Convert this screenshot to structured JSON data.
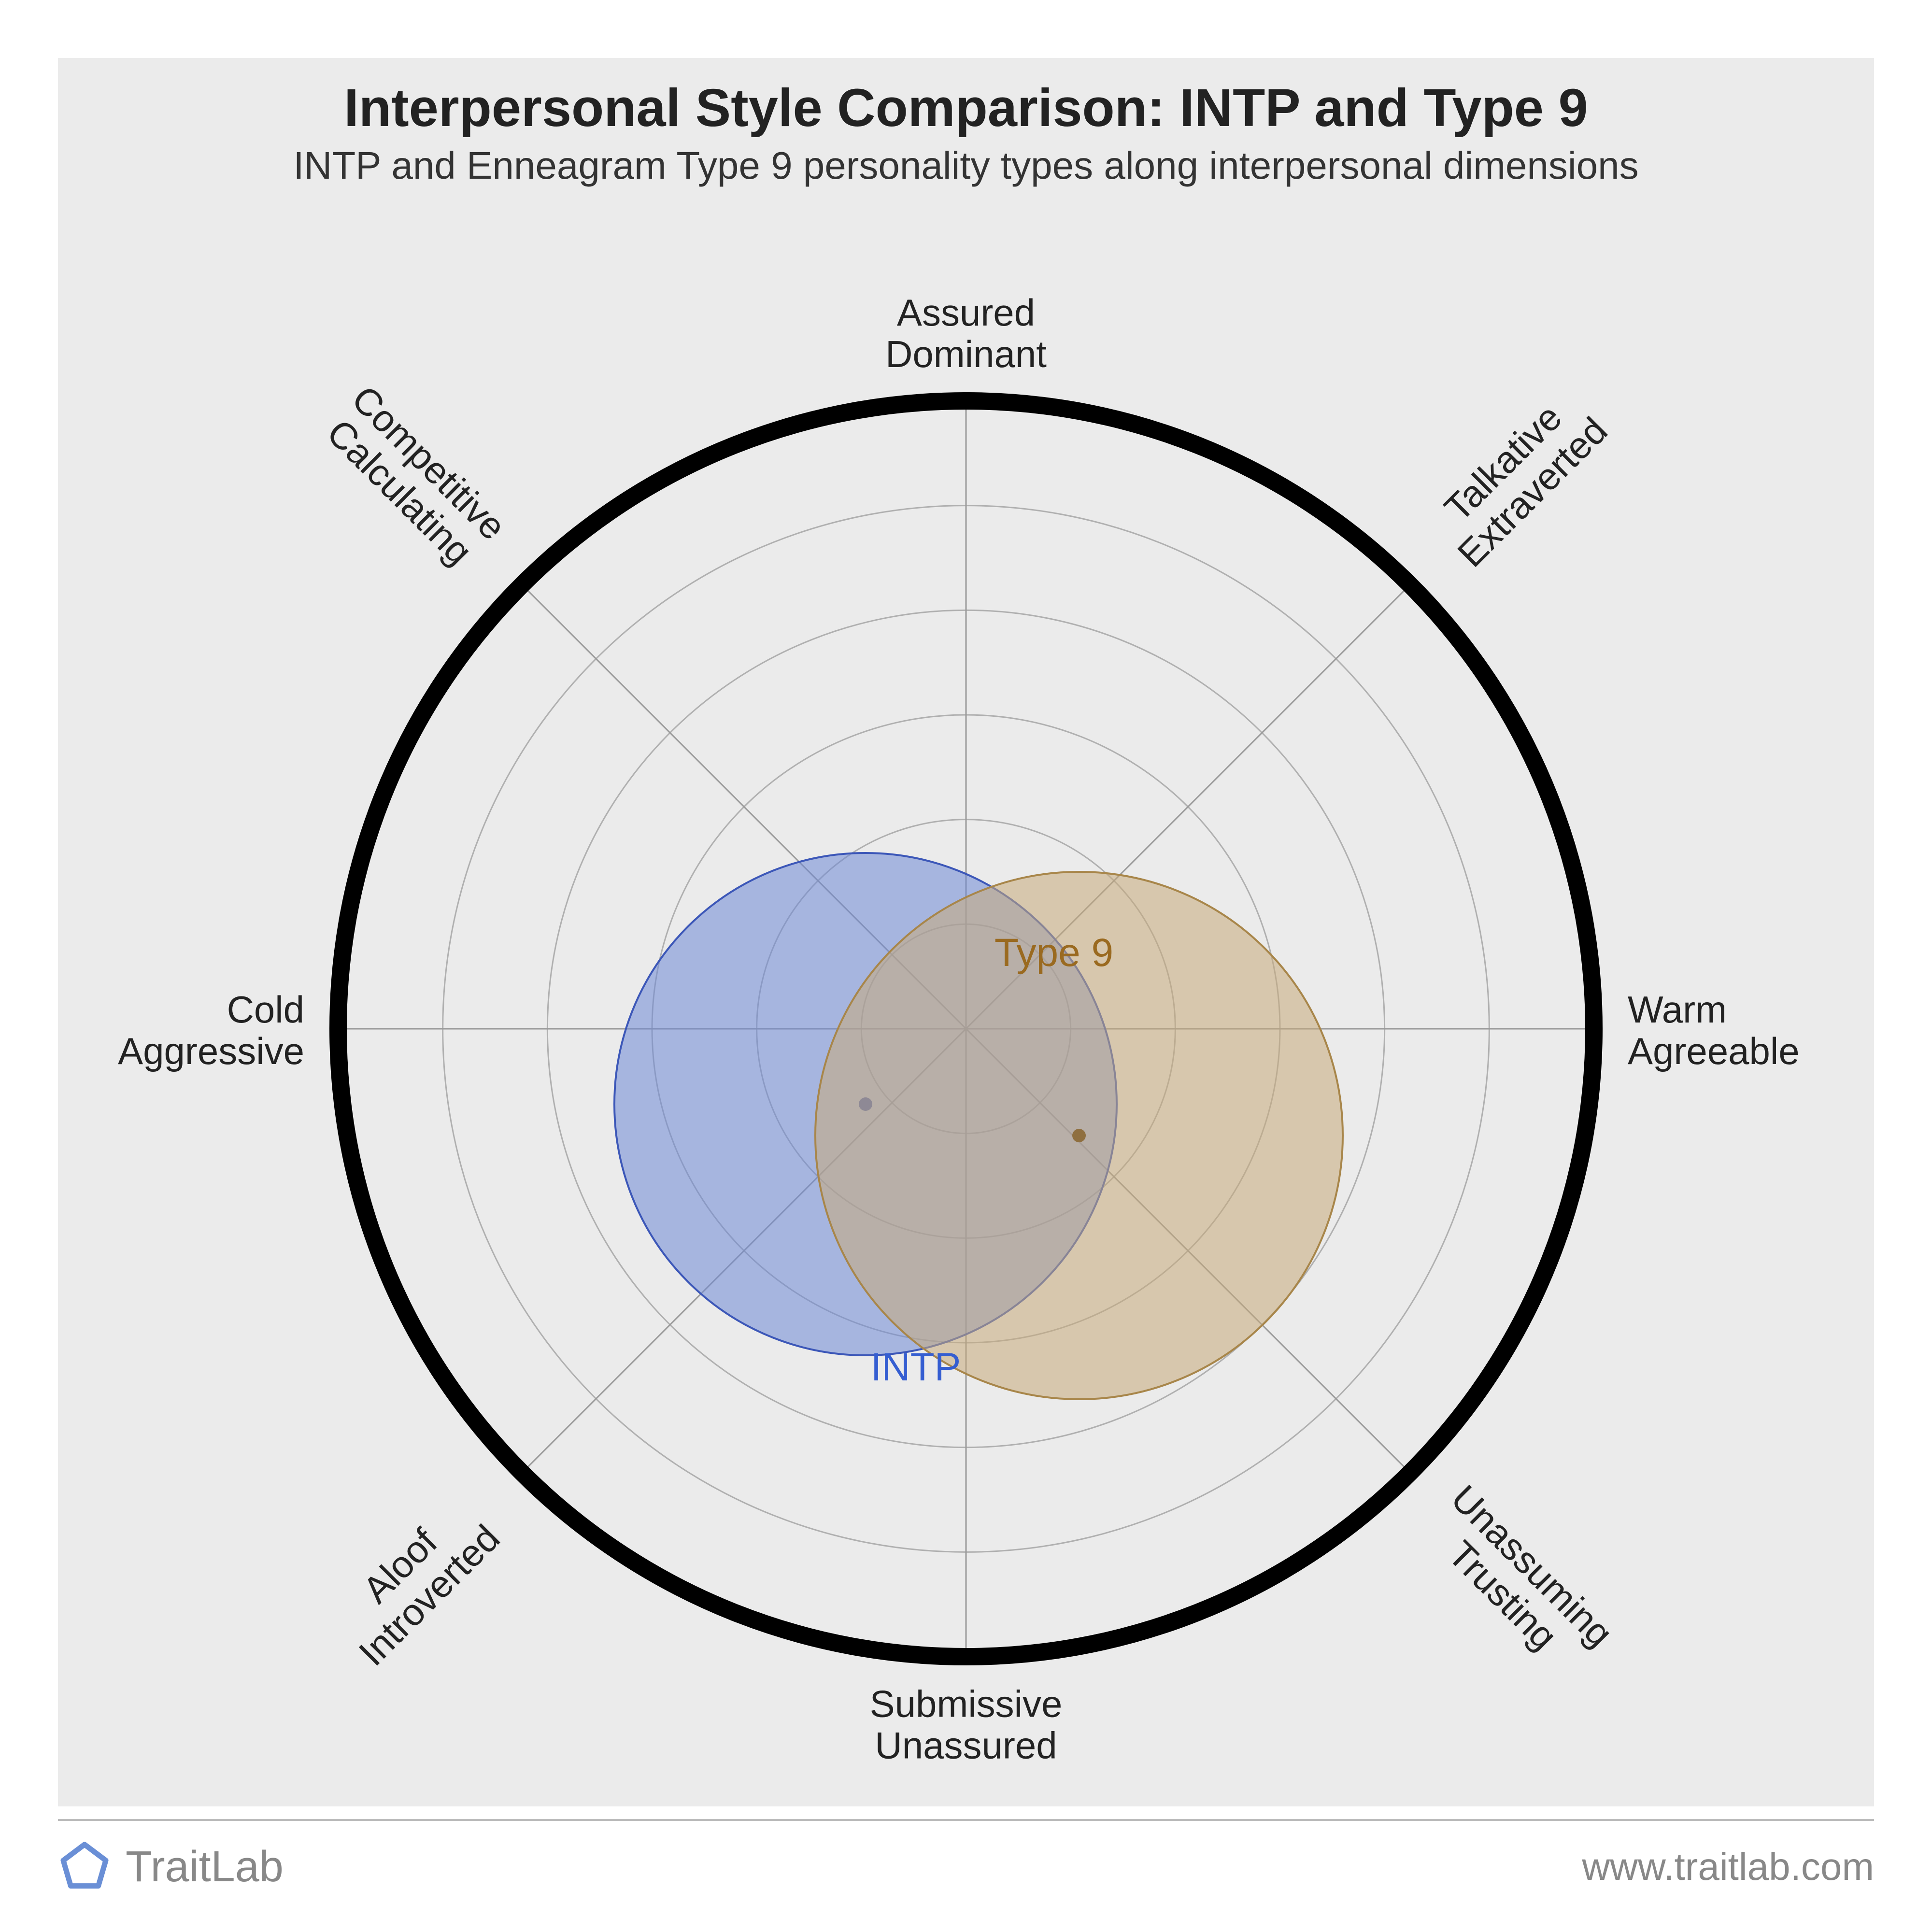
{
  "title": "Interpersonal Style Comparison: INTP and Type 9",
  "subtitle": "INTP and Enneagram Type 9 personality types along interpersonal dimensions",
  "brand": "TraitLab",
  "url": "www.traitlab.com",
  "chart": {
    "type": "circumplex-radar",
    "background_color": "#ebebeb",
    "page_background_color": "#ffffff",
    "outer_ring_stroke": "#000000",
    "outer_ring_width": 36,
    "gridline_color": "#b0b0b0",
    "gridline_width": 3,
    "spoke_color": "#9a9a9a",
    "spoke_width": 3,
    "num_inner_rings": 5,
    "axis_labels": [
      {
        "angle_deg": 90,
        "outer": "Assured",
        "inner": "Dominant"
      },
      {
        "angle_deg": 45,
        "outer": "Talkative",
        "inner": "Extraverted"
      },
      {
        "angle_deg": 0,
        "outer": "Warm",
        "inner": "Agreeable"
      },
      {
        "angle_deg": -45,
        "outer": "Trusting",
        "inner": "Unassuming"
      },
      {
        "angle_deg": -90,
        "outer": "Unassured",
        "inner": "Submissive"
      },
      {
        "angle_deg": -135,
        "outer": "Introverted",
        "inner": "Aloof"
      },
      {
        "angle_deg": 180,
        "outer": "Cold",
        "inner": "Aggressive"
      },
      {
        "angle_deg": 135,
        "outer": "Competitive",
        "inner": "Calculating"
      }
    ],
    "label_fontsize": 78,
    "label_color": "#222222",
    "series": [
      {
        "id": "intp",
        "label": "INTP",
        "center_rel": {
          "x": -0.16,
          "y": -0.12
        },
        "radius_rel": 0.4,
        "fill": "#6e88d6",
        "fill_opacity": 0.55,
        "stroke": "#3c57b8",
        "stroke_width": 4,
        "dot_fill": "#4a63b5",
        "label_color": "#355ed1",
        "label_pos_rel": {
          "x": -0.08,
          "y": -0.56
        },
        "label_fontsize": 82
      },
      {
        "id": "type9",
        "label": "Type 9",
        "center_rel": {
          "x": 0.18,
          "y": -0.17
        },
        "radius_rel": 0.42,
        "fill": "#c6a97a",
        "fill_opacity": 0.55,
        "stroke": "#a8864a",
        "stroke_width": 4,
        "dot_fill": "#8f6f3f",
        "label_color": "#9a6a20",
        "label_pos_rel": {
          "x": 0.14,
          "y": 0.1
        },
        "label_fontsize": 82
      }
    ],
    "series_label_fontweight": 400
  },
  "logo": {
    "stroke": "#6a8fd6",
    "stroke_width": 10,
    "fill": "none"
  }
}
